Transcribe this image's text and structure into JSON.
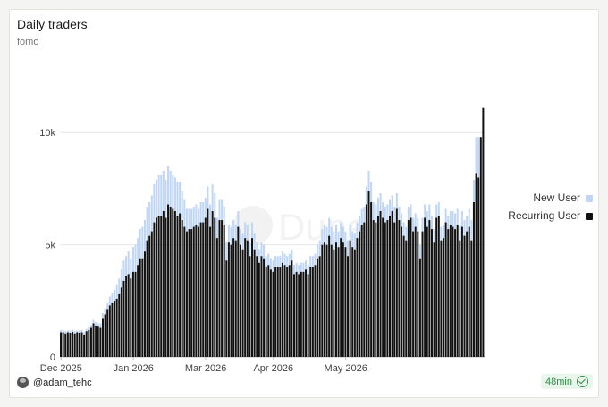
{
  "header": {
    "title": "Daily traders",
    "subtitle": "fomo"
  },
  "watermark": "Dune",
  "footer": {
    "author": "@adam_tehc",
    "freshness": "48min"
  },
  "colors": {
    "new_user": "#bfd6f6",
    "recurring_user": "#111111",
    "accent_green": "#2e8b46"
  },
  "chart_data": {
    "type": "bar",
    "stacked": true,
    "title": "Daily traders",
    "subtitle": "fomo",
    "xlabel": "",
    "ylabel": "",
    "ylim": [
      0,
      13000
    ],
    "yticks": [
      0,
      5000,
      10000
    ],
    "ytick_labels": [
      "0",
      "5k",
      "10k"
    ],
    "xtick_labels": [
      "Dec 2025",
      "Jan 2026",
      "Mar 2026",
      "Apr 2026",
      "May 2026"
    ],
    "xtick_index": [
      0,
      31,
      62,
      91,
      122
    ],
    "grid": true,
    "legend_position": "right",
    "categories_start": "Dec 1, 2025",
    "series": [
      {
        "name": "Recurring User",
        "values": [
          1100,
          1100,
          1050,
          1100,
          1080,
          1120,
          1050,
          1100,
          1080,
          1100,
          1000,
          1150,
          1200,
          1300,
          1500,
          1400,
          1350,
          1300,
          1700,
          1900,
          2100,
          2300,
          2400,
          2500,
          2600,
          2800,
          3100,
          3400,
          3600,
          3700,
          3500,
          3800,
          3800,
          4100,
          4400,
          4400,
          4700,
          5200,
          5400,
          5600,
          6000,
          6200,
          6300,
          6300,
          6500,
          6200,
          6800,
          6700,
          6600,
          6500,
          6300,
          6400,
          6100,
          5800,
          5600,
          5700,
          5700,
          5800,
          5900,
          5800,
          6000,
          6000,
          6200,
          6600,
          5800,
          6500,
          6200,
          5300,
          6100,
          6100,
          5900,
          4300,
          5100,
          5000,
          5300,
          5200,
          5800,
          5000,
          4800,
          5300,
          5200,
          4500,
          5300,
          4800,
          4500,
          4200,
          4500,
          4400,
          4000,
          4100,
          3900,
          3800,
          4000,
          4000,
          4000,
          4200,
          4100,
          4000,
          4100,
          4300,
          3700,
          3800,
          3700,
          3800,
          3800,
          3900,
          3700,
          4000,
          4000,
          4100,
          4400,
          4500,
          5000,
          5100,
          5000,
          5400,
          5000,
          4800,
          5100,
          4900,
          5300,
          5100,
          4900,
          4500,
          5200,
          4900,
          4800,
          5300,
          5600,
          5900,
          6000,
          6800,
          7400,
          6900,
          6100,
          6000,
          6300,
          6500,
          6200,
          6000,
          6100,
          6300,
          6500,
          6000,
          6600,
          6100,
          5800,
          5400,
          5200,
          6100,
          6200,
          5600,
          5800,
          5600,
          4400,
          5600,
          6200,
          5800,
          6100,
          5700,
          5100,
          6200,
          6300,
          5200,
          5300,
          6000,
          5700,
          5900,
          5800,
          5700,
          5900,
          5200,
          5800,
          5400,
          5600,
          5800,
          5200,
          6900,
          8200,
          8000,
          9800,
          11100
        ]
      },
      {
        "name": "New User",
        "values": [
          100,
          100,
          100,
          80,
          100,
          100,
          100,
          80,
          100,
          100,
          100,
          100,
          120,
          120,
          150,
          150,
          150,
          200,
          250,
          250,
          300,
          400,
          450,
          500,
          600,
          700,
          800,
          900,
          900,
          1000,
          900,
          1100,
          1200,
          1200,
          1300,
          1400,
          1400,
          1500,
          1500,
          1600,
          1700,
          1700,
          1800,
          1800,
          1800,
          1700,
          1700,
          1600,
          1500,
          1500,
          1500,
          1400,
          1300,
          1200,
          1000,
          900,
          900,
          900,
          900,
          800,
          900,
          900,
          900,
          1000,
          1000,
          1200,
          1100,
          900,
          900,
          900,
          800,
          800,
          800,
          800,
          800,
          700,
          700,
          700,
          700,
          700,
          700,
          600,
          700,
          700,
          600,
          600,
          600,
          600,
          500,
          500,
          500,
          500,
          500,
          500,
          500,
          500,
          500,
          500,
          500,
          500,
          400,
          400,
          400,
          400,
          400,
          400,
          400,
          500,
          500,
          500,
          600,
          700,
          700,
          800,
          800,
          800,
          800,
          800,
          800,
          700,
          700,
          700,
          700,
          700,
          700,
          700,
          700,
          700,
          700,
          700,
          700,
          800,
          900,
          900,
          800,
          800,
          800,
          800,
          700,
          700,
          700,
          700,
          700,
          700,
          700,
          600,
          600,
          600,
          600,
          600,
          600,
          600,
          600,
          600,
          600,
          600,
          600,
          700,
          700,
          600,
          600,
          600,
          600,
          600,
          600,
          600,
          600,
          600,
          700,
          700,
          700,
          700,
          700,
          700,
          700,
          800,
          900,
          1000,
          1600,
          1800
        ]
      }
    ]
  }
}
